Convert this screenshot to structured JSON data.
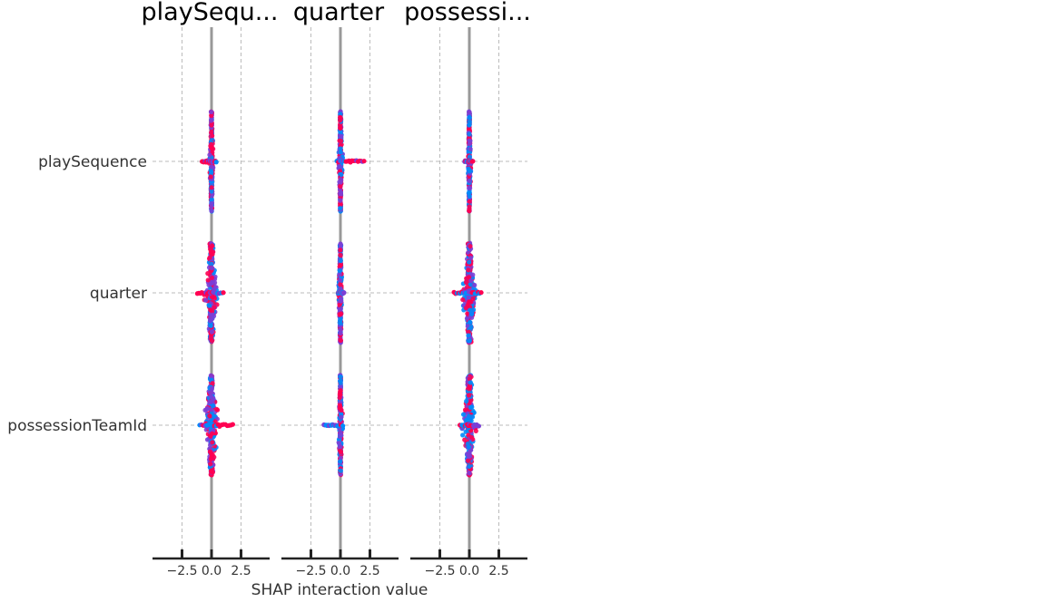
{
  "chart_data": {
    "type": "scatter",
    "subtype": "shap-interaction-beeswarm-grid",
    "panel_titles": [
      "playSequ...",
      "quarter",
      "possessi..."
    ],
    "row_labels": [
      "playSequence",
      "quarter",
      "possessionTeamId"
    ],
    "xlabel": "SHAP interaction value",
    "x_ticks": [
      -2.5,
      0.0,
      2.5
    ],
    "x_tick_labels": [
      "−2.5",
      "0.0",
      "2.5"
    ],
    "xlim": [
      -5,
      5
    ],
    "grid": true,
    "colors": {
      "high": "#ff0052",
      "low": "#008bfb",
      "mid": "#7b3fd6",
      "zero_line": "#999999",
      "grid": "#bbbbbb",
      "axis": "#222222"
    },
    "cells": [
      [
        {
          "row": "playSequence",
          "col": "playSequ...",
          "min": -0.8,
          "max": 0.4,
          "spread": 0.15,
          "vspan": 0.38,
          "skew": "high-left"
        },
        {
          "row": "playSequence",
          "col": "quarter",
          "min": -0.3,
          "max": 2.0,
          "spread": 0.15,
          "vspan": 0.38,
          "skew": "high-right"
        },
        {
          "row": "playSequence",
          "col": "possessi...",
          "min": -0.4,
          "max": 0.3,
          "spread": 0.12,
          "vspan": 0.38,
          "skew": "none"
        }
      ],
      [
        {
          "row": "quarter",
          "col": "playSequ...",
          "min": -1.2,
          "max": 1.0,
          "spread": 0.5,
          "vspan": 0.38,
          "skew": "high-left"
        },
        {
          "row": "quarter",
          "col": "quarter",
          "min": -0.2,
          "max": 0.3,
          "spread": 0.15,
          "vspan": 0.38,
          "skew": "none"
        },
        {
          "row": "quarter",
          "col": "possessi...",
          "min": -1.3,
          "max": 1.0,
          "spread": 0.55,
          "vspan": 0.38,
          "skew": "none"
        }
      ],
      [
        {
          "row": "possessionTeamId",
          "col": "playSequ...",
          "min": -1.0,
          "max": 1.8,
          "spread": 0.55,
          "vspan": 0.38,
          "skew": "high-right"
        },
        {
          "row": "possessionTeamId",
          "col": "quarter",
          "min": -1.4,
          "max": 0.2,
          "spread": 0.15,
          "vspan": 0.38,
          "skew": "low-left"
        },
        {
          "row": "possessionTeamId",
          "col": "possessi...",
          "min": -0.8,
          "max": 0.8,
          "spread": 0.5,
          "vspan": 0.38,
          "skew": "none"
        }
      ]
    ]
  }
}
